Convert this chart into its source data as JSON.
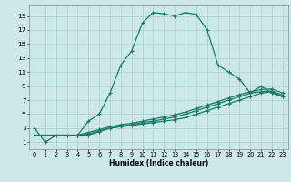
{
  "xlabel": "Humidex (Indice chaleur)",
  "bg_color": "#cde8e8",
  "grid_color": "#aacfcf",
  "line_color": "#1a7a6a",
  "marker": "+",
  "xlim": [
    -0.5,
    23.5
  ],
  "ylim": [
    0,
    20.5
  ],
  "xticks": [
    0,
    1,
    2,
    3,
    4,
    5,
    6,
    7,
    8,
    9,
    10,
    11,
    12,
    13,
    14,
    15,
    16,
    17,
    18,
    19,
    20,
    21,
    22,
    23
  ],
  "yticks": [
    1,
    3,
    5,
    7,
    9,
    11,
    13,
    15,
    17,
    19
  ],
  "line1_x": [
    0,
    1,
    2,
    3,
    4,
    5,
    6,
    7,
    8,
    9,
    10,
    11,
    12,
    13,
    14,
    15,
    16,
    17,
    18,
    19,
    20,
    21,
    22,
    23
  ],
  "line1_y": [
    3,
    1,
    2,
    2,
    2,
    4,
    5,
    8,
    12,
    14,
    18,
    19.5,
    19.3,
    19.0,
    19.5,
    19.2,
    17,
    12,
    11,
    10,
    8,
    9,
    8,
    7.5
  ],
  "line2_x": [
    0,
    4,
    5,
    6,
    7,
    8,
    9,
    10,
    11,
    12,
    13,
    14,
    15,
    16,
    17,
    18,
    19,
    20,
    21,
    22,
    23
  ],
  "line2_y": [
    2,
    2,
    2,
    2.5,
    3,
    3.2,
    3.4,
    3.6,
    3.8,
    4.0,
    4.2,
    4.5,
    5,
    5.5,
    6,
    6.5,
    7,
    7.5,
    8,
    8.2,
    7.5
  ],
  "line3_x": [
    0,
    4,
    5,
    6,
    7,
    8,
    9,
    10,
    11,
    12,
    13,
    14,
    15,
    16,
    17,
    18,
    19,
    20,
    21,
    22,
    23
  ],
  "line3_y": [
    2,
    2,
    2.2,
    2.6,
    3.0,
    3.3,
    3.5,
    3.8,
    4.0,
    4.3,
    4.6,
    5.0,
    5.5,
    6.0,
    6.5,
    7.0,
    7.5,
    8.0,
    8.2,
    8.3,
    7.7
  ],
  "line4_x": [
    0,
    4,
    5,
    6,
    7,
    8,
    9,
    10,
    11,
    12,
    13,
    14,
    15,
    16,
    17,
    18,
    19,
    20,
    21,
    22,
    23
  ],
  "line4_y": [
    2,
    2,
    2.4,
    2.8,
    3.2,
    3.5,
    3.7,
    4.0,
    4.3,
    4.6,
    4.9,
    5.3,
    5.8,
    6.3,
    6.8,
    7.3,
    7.8,
    8.2,
    8.5,
    8.6,
    8.0
  ]
}
